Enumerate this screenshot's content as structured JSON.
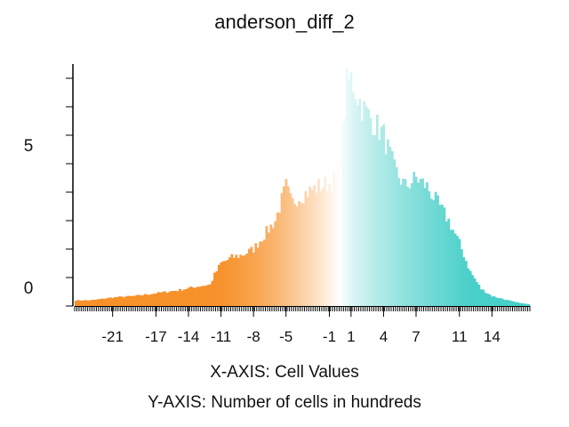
{
  "chart_data": {
    "type": "bar",
    "title": "anderson_diff_2",
    "xlabel": "X-AXIS: Cell Values",
    "ylabel": "Y-AXIS: Number of cells in hundreds",
    "xlim": [
      -24.5,
      17.5
    ],
    "ylim": [
      0,
      8.5
    ],
    "x_ticks": [
      -21,
      -17,
      -14,
      -11,
      -8,
      -5,
      -1,
      1,
      4,
      7,
      11,
      14
    ],
    "x_tick_labels": [
      "-21",
      "-17",
      "-14",
      "-11",
      "-8",
      "-5",
      "-1",
      "1",
      "4",
      "7",
      "11",
      "14"
    ],
    "y_ticks": [
      0,
      5
    ],
    "y_tick_labels": [
      "0",
      "5"
    ],
    "color_low": "#f7912a",
    "color_mid": "#ffffff",
    "color_high": "#49cfc9",
    "bin_width": 0.2,
    "profile_x": [
      -24.5,
      -23,
      -21,
      -19,
      -17,
      -15,
      -13,
      -12,
      -11.6,
      -11,
      -10,
      -9,
      -8,
      -7,
      -6,
      -5.5,
      -5,
      -4.5,
      -4,
      -3,
      -2,
      -1,
      -0.3,
      0,
      0.3,
      0.6,
      1,
      2,
      3,
      4,
      5,
      6,
      7,
      8,
      9,
      10,
      11,
      12,
      13,
      14,
      15,
      16,
      17.5
    ],
    "profile_y": [
      0.2,
      0.2,
      0.3,
      0.35,
      0.45,
      0.55,
      0.7,
      0.75,
      1.1,
      1.5,
      1.7,
      1.8,
      2.0,
      2.5,
      3.0,
      3.6,
      4.2,
      3.6,
      3.8,
      4.0,
      4.2,
      4.3,
      4.5,
      5.0,
      6.5,
      7.8,
      8.0,
      7.0,
      6.5,
      6.0,
      4.8,
      4.2,
      4.5,
      4.2,
      3.6,
      3.0,
      2.2,
      1.2,
      0.6,
      0.35,
      0.25,
      0.15,
      0.05
    ]
  }
}
